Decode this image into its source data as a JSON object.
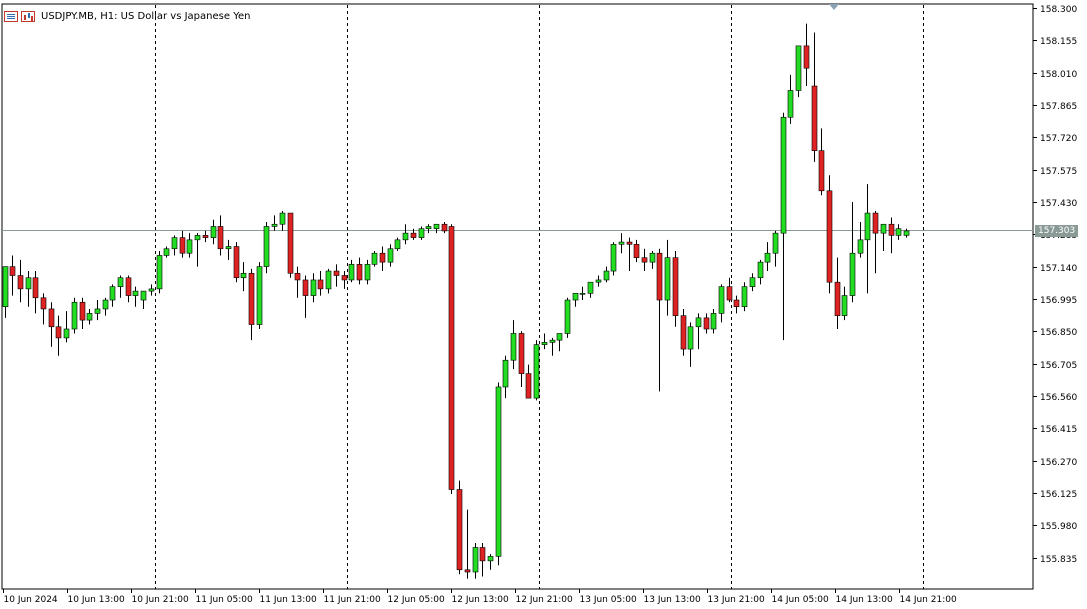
{
  "window": {
    "symbol": "USDJPY.MB",
    "timeframe": "H1",
    "description": "US Dollar vs Japanese Yen",
    "title": "USDJPY.MB, H1:  US Dollar vs Japanese Yen"
  },
  "icons": [
    "chart-properties-icon",
    "bar-chart-icon"
  ],
  "colors": {
    "background": "#ffffff",
    "bull": "#22dd22",
    "bear": "#e02222",
    "wick": "#000000",
    "grid": "#000000",
    "price_line": "#8a9a96"
  },
  "chart_data": {
    "type": "candlestick",
    "title": "USDJPY.MB, H1:  US Dollar vs Japanese Yen",
    "xlabel": "",
    "ylabel": "",
    "ylim": [
      155.76,
      158.31
    ],
    "grid": "vertical dashed at 21:00 each day",
    "current_price": "157.303",
    "current_price_value": 157.303,
    "y_ticks": [
      "158.300",
      "158.155",
      "158.010",
      "157.865",
      "157.720",
      "157.575",
      "157.430",
      "157.285",
      "157.140",
      "156.995",
      "156.850",
      "156.705",
      "156.560",
      "156.415",
      "156.270",
      "156.125",
      "155.980",
      "155.835"
    ],
    "x_ticks": [
      "10 Jun 2024",
      "10 Jun 13:00",
      "10 Jun 21:00",
      "11 Jun 05:00",
      "11 Jun 13:00",
      "11 Jun 21:00",
      "12 Jun 05:00",
      "12 Jun 13:00",
      "12 Jun 21:00",
      "13 Jun 05:00",
      "13 Jun 13:00",
      "13 Jun 21:00",
      "14 Jun 05:00",
      "14 Jun 13:00",
      "14 Jun 21:00"
    ],
    "separator_after_tick": [
      2,
      5,
      8,
      11,
      14
    ],
    "candles": [
      {
        "o": 156.96,
        "h": 157.12,
        "l": 156.91,
        "c": 157.14
      },
      {
        "o": 157.14,
        "h": 157.19,
        "l": 157.01,
        "c": 157.1
      },
      {
        "o": 157.1,
        "h": 157.17,
        "l": 156.98,
        "c": 157.04
      },
      {
        "o": 157.04,
        "h": 157.12,
        "l": 156.96,
        "c": 157.09
      },
      {
        "o": 157.09,
        "h": 157.12,
        "l": 156.93,
        "c": 157.0
      },
      {
        "o": 157.0,
        "h": 157.02,
        "l": 156.88,
        "c": 156.95
      },
      {
        "o": 156.95,
        "h": 156.98,
        "l": 156.78,
        "c": 156.87
      },
      {
        "o": 156.87,
        "h": 156.92,
        "l": 156.74,
        "c": 156.82
      },
      {
        "o": 156.82,
        "h": 156.94,
        "l": 156.8,
        "c": 156.86
      },
      {
        "o": 156.86,
        "h": 157.0,
        "l": 156.84,
        "c": 156.98
      },
      {
        "o": 156.98,
        "h": 157.0,
        "l": 156.86,
        "c": 156.9
      },
      {
        "o": 156.9,
        "h": 156.95,
        "l": 156.88,
        "c": 156.93
      },
      {
        "o": 156.93,
        "h": 156.99,
        "l": 156.9,
        "c": 156.95
      },
      {
        "o": 156.95,
        "h": 157.0,
        "l": 156.92,
        "c": 156.99
      },
      {
        "o": 156.99,
        "h": 157.06,
        "l": 156.96,
        "c": 157.05
      },
      {
        "o": 157.05,
        "h": 157.1,
        "l": 157.0,
        "c": 157.09
      },
      {
        "o": 157.09,
        "h": 157.1,
        "l": 156.98,
        "c": 157.01
      },
      {
        "o": 157.01,
        "h": 157.05,
        "l": 156.96,
        "c": 157.03
      },
      {
        "o": 156.99,
        "h": 157.03,
        "l": 156.95,
        "c": 157.03
      },
      {
        "o": 157.03,
        "h": 157.06,
        "l": 157.01,
        "c": 157.04
      },
      {
        "o": 157.04,
        "h": 157.21,
        "l": 157.02,
        "c": 157.19
      },
      {
        "o": 157.19,
        "h": 157.23,
        "l": 157.18,
        "c": 157.22
      },
      {
        "o": 157.22,
        "h": 157.28,
        "l": 157.19,
        "c": 157.27
      },
      {
        "o": 157.27,
        "h": 157.3,
        "l": 157.18,
        "c": 157.2
      },
      {
        "o": 157.2,
        "h": 157.29,
        "l": 157.18,
        "c": 157.26
      },
      {
        "o": 157.26,
        "h": 157.29,
        "l": 157.14,
        "c": 157.28
      },
      {
        "o": 157.28,
        "h": 157.3,
        "l": 157.25,
        "c": 157.27
      },
      {
        "o": 157.27,
        "h": 157.35,
        "l": 157.24,
        "c": 157.32
      },
      {
        "o": 157.32,
        "h": 157.37,
        "l": 157.19,
        "c": 157.22
      },
      {
        "o": 157.22,
        "h": 157.26,
        "l": 157.17,
        "c": 157.23
      },
      {
        "o": 157.23,
        "h": 157.25,
        "l": 157.07,
        "c": 157.09
      },
      {
        "o": 157.09,
        "h": 157.16,
        "l": 157.03,
        "c": 157.11
      },
      {
        "o": 157.11,
        "h": 157.13,
        "l": 156.81,
        "c": 156.88
      },
      {
        "o": 156.88,
        "h": 157.16,
        "l": 156.86,
        "c": 157.14
      },
      {
        "o": 157.14,
        "h": 157.34,
        "l": 157.11,
        "c": 157.32
      },
      {
        "o": 157.32,
        "h": 157.37,
        "l": 157.3,
        "c": 157.33
      },
      {
        "o": 157.33,
        "h": 157.39,
        "l": 157.3,
        "c": 157.38
      },
      {
        "o": 157.38,
        "h": 157.37,
        "l": 157.09,
        "c": 157.11
      },
      {
        "o": 157.11,
        "h": 157.14,
        "l": 157.0,
        "c": 157.08
      },
      {
        "o": 157.08,
        "h": 157.1,
        "l": 156.91,
        "c": 157.01
      },
      {
        "o": 157.01,
        "h": 157.11,
        "l": 156.98,
        "c": 157.08
      },
      {
        "o": 157.08,
        "h": 157.12,
        "l": 157.01,
        "c": 157.04
      },
      {
        "o": 157.04,
        "h": 157.13,
        "l": 157.02,
        "c": 157.12
      },
      {
        "o": 157.12,
        "h": 157.15,
        "l": 157.05,
        "c": 157.1
      },
      {
        "o": 157.1,
        "h": 157.12,
        "l": 157.04,
        "c": 157.08
      },
      {
        "o": 157.08,
        "h": 157.17,
        "l": 157.07,
        "c": 157.15
      },
      {
        "o": 157.15,
        "h": 157.18,
        "l": 157.06,
        "c": 157.08
      },
      {
        "o": 157.08,
        "h": 157.17,
        "l": 157.06,
        "c": 157.15
      },
      {
        "o": 157.15,
        "h": 157.21,
        "l": 157.14,
        "c": 157.2
      },
      {
        "o": 157.2,
        "h": 157.23,
        "l": 157.12,
        "c": 157.16
      },
      {
        "o": 157.16,
        "h": 157.24,
        "l": 157.14,
        "c": 157.22
      },
      {
        "o": 157.22,
        "h": 157.27,
        "l": 157.21,
        "c": 157.26
      },
      {
        "o": 157.26,
        "h": 157.33,
        "l": 157.24,
        "c": 157.29
      },
      {
        "o": 157.29,
        "h": 157.31,
        "l": 157.26,
        "c": 157.27
      },
      {
        "o": 157.27,
        "h": 157.32,
        "l": 157.26,
        "c": 157.31
      },
      {
        "o": 157.31,
        "h": 157.33,
        "l": 157.29,
        "c": 157.32
      },
      {
        "o": 157.31,
        "h": 157.33,
        "l": 157.29,
        "c": 157.33
      },
      {
        "o": 157.33,
        "h": 157.34,
        "l": 157.29,
        "c": 157.3
      },
      {
        "o": 157.32,
        "h": 157.33,
        "l": 156.12,
        "c": 156.14
      },
      {
        "o": 156.14,
        "h": 156.18,
        "l": 155.76,
        "c": 155.78
      },
      {
        "o": 155.78,
        "h": 156.05,
        "l": 155.74,
        "c": 155.77
      },
      {
        "o": 155.77,
        "h": 155.9,
        "l": 155.74,
        "c": 155.88
      },
      {
        "o": 155.88,
        "h": 155.9,
        "l": 155.75,
        "c": 155.82
      },
      {
        "o": 155.82,
        "h": 155.85,
        "l": 155.78,
        "c": 155.84
      },
      {
        "o": 155.84,
        "h": 156.62,
        "l": 155.8,
        "c": 156.6
      },
      {
        "o": 156.6,
        "h": 156.74,
        "l": 156.55,
        "c": 156.72
      },
      {
        "o": 156.72,
        "h": 156.9,
        "l": 156.68,
        "c": 156.84
      },
      {
        "o": 156.84,
        "h": 156.85,
        "l": 156.6,
        "c": 156.66
      },
      {
        "o": 156.66,
        "h": 156.7,
        "l": 156.55,
        "c": 156.55
      },
      {
        "o": 156.55,
        "h": 156.81,
        "l": 156.54,
        "c": 156.79
      },
      {
        "o": 156.79,
        "h": 156.84,
        "l": 156.77,
        "c": 156.8
      },
      {
        "o": 156.8,
        "h": 156.82,
        "l": 156.74,
        "c": 156.81
      },
      {
        "o": 156.81,
        "h": 156.84,
        "l": 156.76,
        "c": 156.84
      },
      {
        "o": 156.84,
        "h": 157.0,
        "l": 156.82,
        "c": 156.99
      },
      {
        "o": 156.99,
        "h": 157.02,
        "l": 156.96,
        "c": 157.02
      },
      {
        "o": 157.02,
        "h": 157.05,
        "l": 156.99,
        "c": 157.02
      },
      {
        "o": 157.02,
        "h": 157.06,
        "l": 157.0,
        "c": 157.07
      },
      {
        "o": 157.07,
        "h": 157.1,
        "l": 157.05,
        "c": 157.08
      },
      {
        "o": 157.08,
        "h": 157.14,
        "l": 157.07,
        "c": 157.12
      },
      {
        "o": 157.12,
        "h": 157.25,
        "l": 157.1,
        "c": 157.24
      },
      {
        "o": 157.24,
        "h": 157.29,
        "l": 157.2,
        "c": 157.25
      },
      {
        "o": 157.25,
        "h": 157.27,
        "l": 157.12,
        "c": 157.24
      },
      {
        "o": 157.24,
        "h": 157.26,
        "l": 157.16,
        "c": 157.18
      },
      {
        "o": 157.18,
        "h": 157.22,
        "l": 157.12,
        "c": 157.16
      },
      {
        "o": 157.16,
        "h": 157.21,
        "l": 157.13,
        "c": 157.2
      },
      {
        "o": 157.2,
        "h": 157.22,
        "l": 156.58,
        "c": 156.99
      },
      {
        "o": 156.99,
        "h": 157.26,
        "l": 156.92,
        "c": 157.18
      },
      {
        "o": 157.18,
        "h": 157.21,
        "l": 156.87,
        "c": 156.92
      },
      {
        "o": 156.92,
        "h": 156.95,
        "l": 156.74,
        "c": 156.77
      },
      {
        "o": 156.77,
        "h": 156.89,
        "l": 156.69,
        "c": 156.87
      },
      {
        "o": 156.87,
        "h": 156.93,
        "l": 156.77,
        "c": 156.91
      },
      {
        "o": 156.91,
        "h": 156.93,
        "l": 156.84,
        "c": 156.86
      },
      {
        "o": 156.86,
        "h": 156.95,
        "l": 156.84,
        "c": 156.93
      },
      {
        "o": 156.93,
        "h": 157.06,
        "l": 156.89,
        "c": 157.05
      },
      {
        "o": 157.05,
        "h": 157.09,
        "l": 156.98,
        "c": 156.99
      },
      {
        "o": 156.99,
        "h": 157.01,
        "l": 156.93,
        "c": 156.96
      },
      {
        "o": 156.96,
        "h": 157.07,
        "l": 156.94,
        "c": 157.05
      },
      {
        "o": 157.05,
        "h": 157.11,
        "l": 157.03,
        "c": 157.09
      },
      {
        "o": 157.09,
        "h": 157.17,
        "l": 157.06,
        "c": 157.16
      },
      {
        "o": 157.16,
        "h": 157.25,
        "l": 157.12,
        "c": 157.2
      },
      {
        "o": 157.2,
        "h": 157.3,
        "l": 157.14,
        "c": 157.29
      },
      {
        "o": 157.29,
        "h": 157.83,
        "l": 156.81,
        "c": 157.81
      },
      {
        "o": 157.81,
        "h": 158.0,
        "l": 157.78,
        "c": 157.93
      },
      {
        "o": 157.93,
        "h": 158.13,
        "l": 157.9,
        "c": 158.13
      },
      {
        "o": 158.13,
        "h": 158.23,
        "l": 157.95,
        "c": 158.03
      },
      {
        "o": 157.95,
        "h": 158.19,
        "l": 157.61,
        "c": 157.66
      },
      {
        "o": 157.66,
        "h": 157.76,
        "l": 157.46,
        "c": 157.48
      },
      {
        "o": 157.48,
        "h": 157.55,
        "l": 157.02,
        "c": 157.07
      },
      {
        "o": 157.07,
        "h": 157.18,
        "l": 156.86,
        "c": 156.92
      },
      {
        "o": 156.92,
        "h": 157.05,
        "l": 156.9,
        "c": 157.01
      },
      {
        "o": 157.01,
        "h": 157.43,
        "l": 156.98,
        "c": 157.2
      },
      {
        "o": 157.2,
        "h": 157.34,
        "l": 157.18,
        "c": 157.26
      },
      {
        "o": 157.26,
        "h": 157.51,
        "l": 157.02,
        "c": 157.38
      },
      {
        "o": 157.38,
        "h": 157.39,
        "l": 157.11,
        "c": 157.29
      },
      {
        "o": 157.29,
        "h": 157.31,
        "l": 157.21,
        "c": 157.33
      },
      {
        "o": 157.33,
        "h": 157.36,
        "l": 157.2,
        "c": 157.28
      },
      {
        "o": 157.28,
        "h": 157.33,
        "l": 157.26,
        "c": 157.31
      },
      {
        "o": 157.28,
        "h": 157.31,
        "l": 157.27,
        "c": 157.3
      }
    ]
  }
}
